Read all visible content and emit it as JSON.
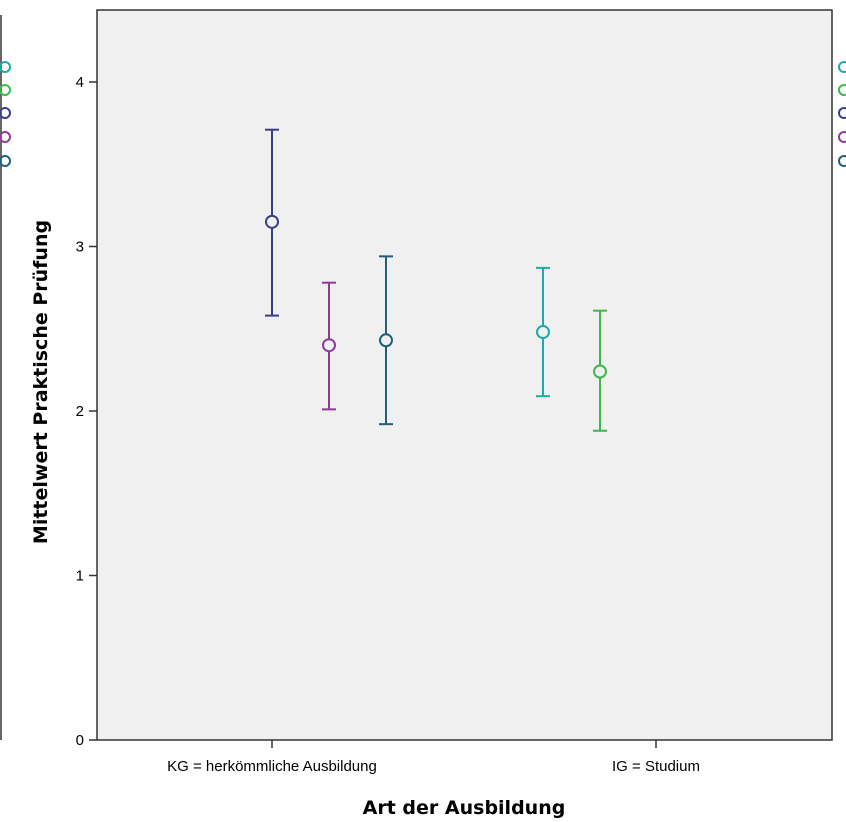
{
  "chart_data": {
    "type": "scatter",
    "subtype": "error-bar",
    "xlabel": "Art der Ausbildung",
    "ylabel": "Mittelwert Praktische Prüfung",
    "ylim": [
      0,
      4.4
    ],
    "y_ticks": [
      0,
      1,
      2,
      3,
      4
    ],
    "categories": [
      "KG = herkömmliche Ausbildung",
      "IG = Studium"
    ],
    "grid": false,
    "plot_background": "#f0f0f0",
    "points": [
      {
        "category": "KG = herkömmliche Ausbildung",
        "slot": 0,
        "mean": 3.15,
        "lower": 2.58,
        "upper": 3.71,
        "color": "#3c3c8c"
      },
      {
        "category": "KG = herkömmliche Ausbildung",
        "slot": 1,
        "mean": 2.4,
        "lower": 2.01,
        "upper": 2.78,
        "color": "#8e3a97"
      },
      {
        "category": "KG = herkömmliche Ausbildung",
        "slot": 2,
        "mean": 2.43,
        "lower": 1.92,
        "upper": 2.94,
        "color": "#1f5f7a"
      },
      {
        "category": "IG = Studium",
        "slot": 0,
        "mean": 2.48,
        "lower": 2.09,
        "upper": 2.87,
        "color": "#1faaa8"
      },
      {
        "category": "IG = Studium",
        "slot": 1,
        "mean": 2.24,
        "lower": 1.88,
        "upper": 2.61,
        "color": "#3cb84c"
      }
    ],
    "legend_marker_colors": [
      "#1faaa8",
      "#3cb84c",
      "#3c3c8c",
      "#8e3a97",
      "#1f5f7a"
    ]
  }
}
